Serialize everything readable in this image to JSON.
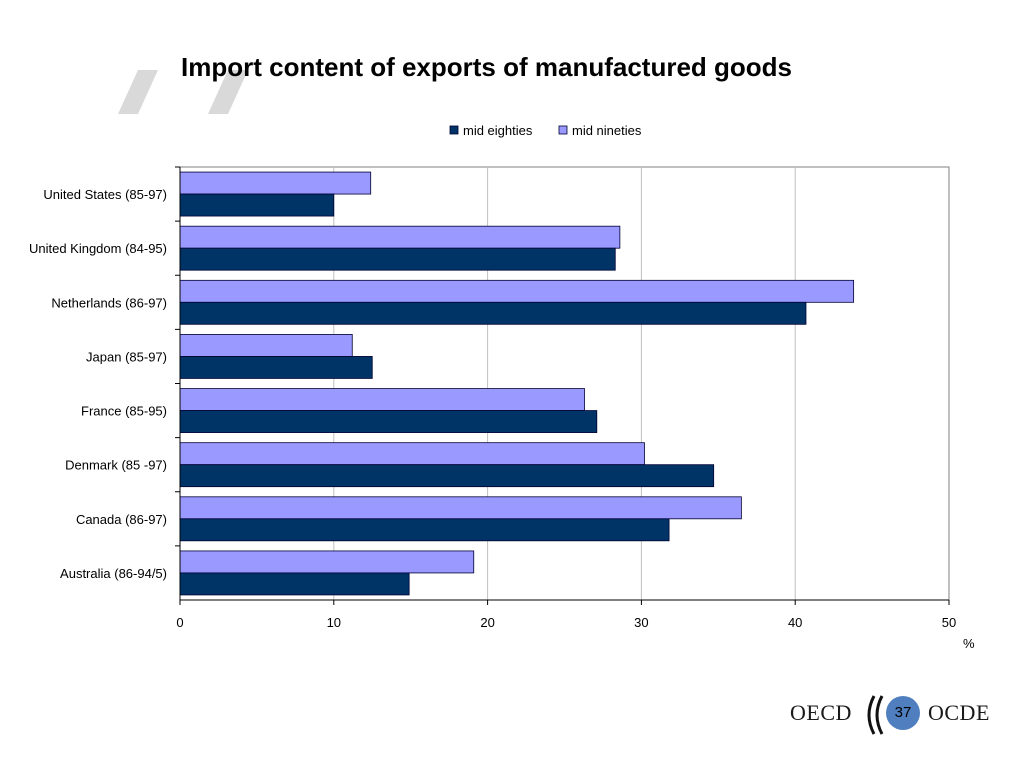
{
  "slide": {
    "title": "Import content of exports of manufactured goods",
    "page_number": "37",
    "logo_left": "OECD",
    "logo_right": "OCDE"
  },
  "chart_data": {
    "type": "bar",
    "orientation": "horizontal",
    "categories": [
      "United States (85-97)",
      "United Kingdom (84-95)",
      "Netherlands (86-97)",
      "Japan (85-97)",
      "France (85-95)",
      "Denmark (85 -97)",
      "Canada (86-97)",
      "Australia (86-94/5)"
    ],
    "series": [
      {
        "name": "mid eighties",
        "color": "#003366",
        "values": [
          10.0,
          28.3,
          40.7,
          12.5,
          27.1,
          34.7,
          31.8,
          14.9
        ]
      },
      {
        "name": "mid nineties",
        "color": "#9999ff",
        "values": [
          12.4,
          28.6,
          43.8,
          11.2,
          26.3,
          30.2,
          36.5,
          19.1
        ]
      }
    ],
    "xlabel": "%",
    "ylabel": "",
    "xlim": [
      0,
      50
    ],
    "xticks": [
      0,
      10,
      20,
      30,
      40,
      50
    ],
    "grid": true,
    "legend_position": "top"
  }
}
